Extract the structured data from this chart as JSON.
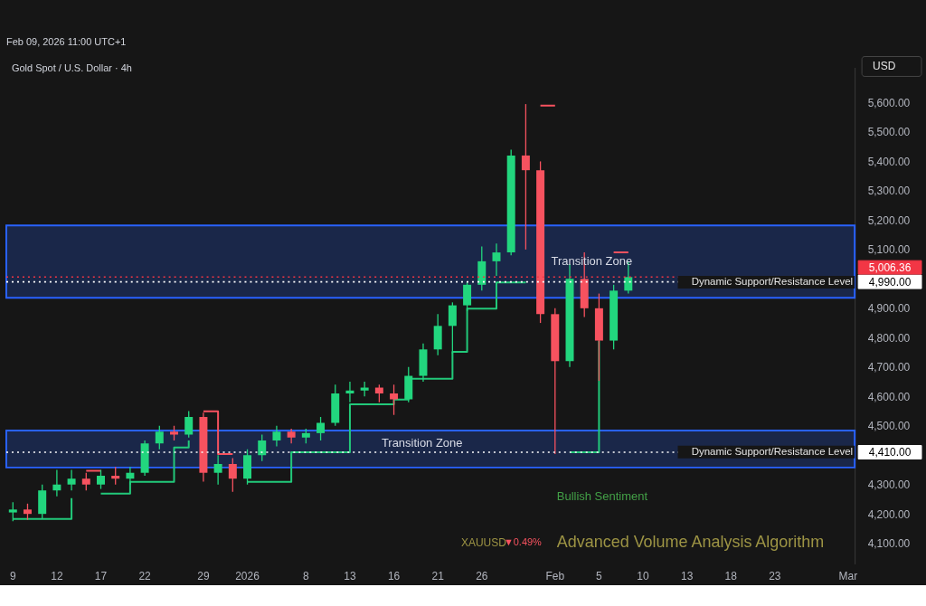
{
  "chart_data": {
    "type": "candlestick",
    "title": "Gold Spot / U.S. Dollar · 4h",
    "ylabel": "USD",
    "categories": [
      "9",
      null,
      null,
      "12",
      null,
      null,
      "17",
      null,
      null,
      "22",
      null,
      null,
      null,
      "29",
      null,
      null,
      "2026",
      null,
      null,
      null,
      "8",
      null,
      null,
      "13",
      null,
      null,
      "16",
      null,
      null,
      "21",
      null,
      null,
      "26",
      null,
      null,
      null,
      null,
      "Feb",
      null,
      null,
      "5",
      null,
      null,
      "10",
      null,
      null,
      "13",
      null,
      null,
      "18",
      null,
      null,
      "23",
      null,
      null,
      null,
      null,
      "Mar"
    ],
    "ohlc": [
      [
        4205,
        4240,
        4175,
        4215
      ],
      [
        4215,
        4235,
        4180,
        4200
      ],
      [
        4200,
        4300,
        4185,
        4280
      ],
      [
        4280,
        4350,
        4260,
        4300
      ],
      [
        4300,
        4350,
        4280,
        4320
      ],
      [
        4320,
        4340,
        4280,
        4300
      ],
      [
        4300,
        4350,
        4285,
        4330
      ],
      [
        4330,
        4360,
        4300,
        4320
      ],
      [
        4320,
        4360,
        4300,
        4340
      ],
      [
        4340,
        4450,
        4330,
        4440
      ],
      [
        4440,
        4500,
        4420,
        4480
      ],
      [
        4480,
        4500,
        4450,
        4470
      ],
      [
        4470,
        4550,
        4460,
        4530
      ],
      [
        4530,
        4545,
        4310,
        4340
      ],
      [
        4340,
        4400,
        4300,
        4370
      ],
      [
        4370,
        4390,
        4275,
        4320
      ],
      [
        4320,
        4420,
        4300,
        4400
      ],
      [
        4400,
        4470,
        4380,
        4450
      ],
      [
        4450,
        4500,
        4430,
        4480
      ],
      [
        4480,
        4490,
        4440,
        4460
      ],
      [
        4460,
        4490,
        4440,
        4475
      ],
      [
        4475,
        4530,
        4450,
        4510
      ],
      [
        4510,
        4640,
        4500,
        4610
      ],
      [
        4610,
        4650,
        4580,
        4620
      ],
      [
        4620,
        4650,
        4600,
        4630
      ],
      [
        4630,
        4640,
        4580,
        4610
      ],
      [
        4610,
        4640,
        4537,
        4590
      ],
      [
        4590,
        4700,
        4580,
        4670
      ],
      [
        4670,
        4780,
        4650,
        4760
      ],
      [
        4760,
        4880,
        4740,
        4840
      ],
      [
        4840,
        4920,
        4745,
        4910
      ],
      [
        4910,
        4990,
        4890,
        4980
      ],
      [
        4980,
        5110,
        4960,
        5060
      ],
      [
        5060,
        5120,
        5010,
        5090
      ],
      [
        5090,
        5440,
        5080,
        5420
      ],
      [
        5420,
        5595,
        5100,
        5370
      ],
      [
        5370,
        5400,
        4850,
        4880
      ],
      [
        4880,
        4900,
        4404,
        4720
      ],
      [
        4720,
        5050,
        4700,
        5000
      ],
      [
        5000,
        5090,
        4870,
        4900
      ],
      [
        4900,
        4950,
        4653,
        4790
      ],
      [
        4790,
        4980,
        4760,
        4960
      ],
      [
        4960,
        5060,
        4950,
        5006.36
      ],
      null,
      null,
      null,
      null,
      null,
      null,
      null,
      null,
      null,
      null,
      null,
      null,
      null,
      null,
      null
    ],
    "colors": [
      "#22d67e",
      "#f7525f",
      "#22d67e",
      "#22d67e",
      "#22d67e",
      "#f7525f",
      "#22d67e",
      "#f7525f",
      "#22d67e",
      "#22d67e",
      "#22d67e",
      "#f7525f",
      "#22d67e",
      "#f7525f",
      "#22d67e",
      "#f7525f",
      "#22d67e",
      "#22d67e",
      "#22d67e",
      "#f7525f",
      "#22d67e",
      "#22d67e",
      "#22d67e",
      "#22d67e",
      "#22d67e",
      "#f7525f",
      "#f7525f",
      "#22d67e",
      "#22d67e",
      "#22d67e",
      "#22d67e",
      "#22d67e",
      "#22d67e",
      "#22d67e",
      "#22d67e",
      "#f7525f",
      "#f7525f",
      "#f7525f",
      "#22d67e",
      "#f7525f",
      "#f7525f",
      "#22d67e",
      "#22d67e",
      null,
      null,
      null,
      null,
      null,
      null,
      null,
      null,
      null,
      null,
      null,
      null,
      null,
      null,
      null
    ],
    "series": [
      {
        "type": "step",
        "color": "#22c97a",
        "values": [
          4183,
          4183,
          4183,
          4183,
          4254,
          null,
          4269,
          4269,
          4309,
          4309,
          4309,
          4426,
          4450,
          null,
          null,
          null,
          4309,
          4309,
          4309,
          4410,
          4410,
          4410,
          4410,
          4573,
          4573,
          4573,
          4589,
          4660,
          4660,
          4660,
          4752,
          4899,
          4899,
          4988,
          4988,
          4988,
          null,
          null,
          4410,
          4410,
          4789,
          null,
          null,
          null,
          null,
          null,
          null,
          null,
          null,
          null,
          null,
          null,
          null,
          null,
          null,
          null,
          null,
          null
        ]
      },
      {
        "type": "step",
        "color": "#f7525f",
        "values": [
          null,
          null,
          null,
          null,
          null,
          4347,
          4347,
          null,
          null,
          null,
          null,
          null,
          null,
          4549,
          4404,
          4404,
          null,
          null,
          null,
          null,
          null,
          null,
          null,
          null,
          null,
          null,
          null,
          null,
          null,
          null,
          null,
          null,
          null,
          null,
          null,
          null,
          5590,
          5590,
          null,
          null,
          null,
          5090,
          5090,
          null,
          null,
          null,
          null,
          null,
          null,
          null,
          null,
          null,
          null,
          null,
          null,
          null,
          null,
          null
        ]
      }
    ],
    "ylim": [
      4030,
      5720
    ],
    "yticks": [
      {
        "value": 4100,
        "label": "4,100.00"
      },
      {
        "value": 4200,
        "label": "4,200.00"
      },
      {
        "value": 4300,
        "label": "4,300.00"
      },
      {
        "value": 4500,
        "label": "4,500.00"
      },
      {
        "value": 4600,
        "label": "4,600.00"
      },
      {
        "value": 4700,
        "label": "4,700.00"
      },
      {
        "value": 4800,
        "label": "4,800.00"
      },
      {
        "value": 4900,
        "label": "4,900.00"
      },
      {
        "value": 5100,
        "label": "5,100.00"
      },
      {
        "value": 5200,
        "label": "5,200.00"
      },
      {
        "value": 5300,
        "label": "5,300.00"
      },
      {
        "value": 5400,
        "label": "5,400.00"
      },
      {
        "value": 5500,
        "label": "5,500.00"
      },
      {
        "value": 5600,
        "label": "5,600.00"
      }
    ],
    "bands": [
      {
        "axis": "y",
        "from": 4936,
        "to": 5182,
        "label": "Transition Zone",
        "color": "#2962ff"
      },
      {
        "axis": "y",
        "from": 4358,
        "to": 4484,
        "label": "Transition Zone",
        "color": "#2962ff"
      }
    ],
    "ref_lines": [
      {
        "axis": "y",
        "value": 5006.36,
        "label": "5,006.36",
        "color": "#f23645",
        "line_style": "dotted"
      },
      {
        "axis": "y",
        "value": 4990,
        "label": "4,990.00",
        "color": "#ffffff",
        "line_style": "dotted"
      },
      {
        "axis": "y",
        "value": 4410,
        "label": "4,410.00",
        "color": "#ffffff",
        "line_style": "dotted"
      }
    ],
    "annotations": [
      "Feb 09, 2026 11:00 UTC+1",
      "Bullish Sentiment",
      "XAUUSD",
      "▼0.49%",
      "Advanced Volume Analysis Algorithm",
      "Dynamic Support/Resistance Level",
      "Dynamic Support/Resistance Level"
    ]
  }
}
